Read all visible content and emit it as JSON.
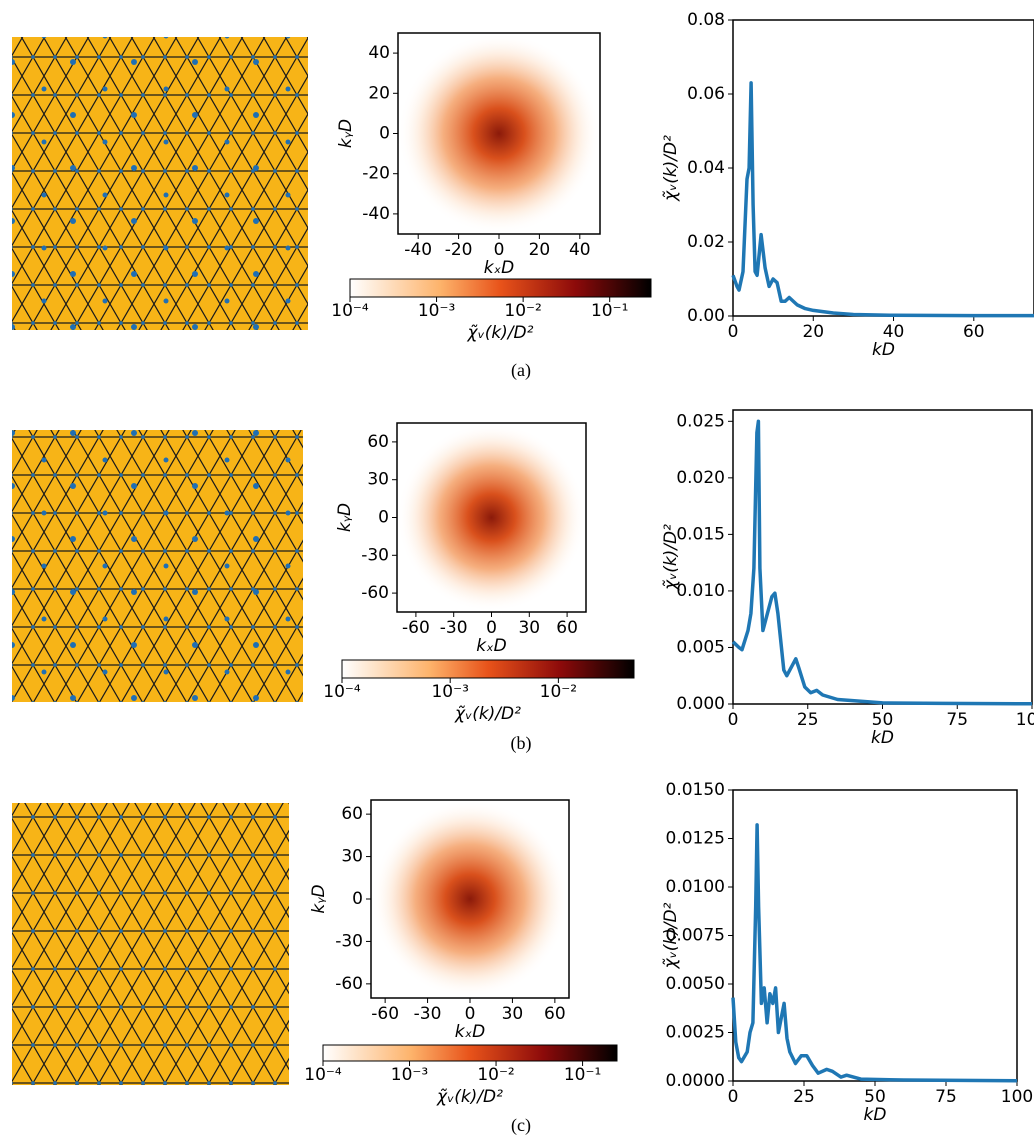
{
  "captions": [
    "(a)",
    "(b)",
    "(c)"
  ],
  "chart_data": [
    {
      "type": "heatmap",
      "xlabel": "kₓD",
      "ylabel": "kᵧD",
      "xlim": [
        -50,
        50
      ],
      "ylim": [
        -50,
        50
      ],
      "xticks": [
        -40,
        -20,
        0,
        20,
        40
      ],
      "yticks": [
        -40,
        -20,
        0,
        20,
        40
      ],
      "colorbar_label": "χ̃ᵥ(k)/D²",
      "clim": [
        0.0001,
        0.3
      ],
      "clog": true,
      "cticks": [
        {
          "value": 0.0001,
          "label": "10⁻⁴"
        },
        {
          "value": 0.001,
          "label": "10⁻³"
        },
        {
          "value": 0.01,
          "label": "10⁻²"
        },
        {
          "value": 0.1,
          "label": "10⁻¹"
        }
      ]
    },
    {
      "type": "line",
      "xlabel": "kD",
      "ylabel": "χ̃ᵥ(k)/D²",
      "color": "#1f77b4",
      "xlim": [
        0,
        75
      ],
      "ylim": [
        0,
        0.08
      ],
      "xticks": [
        0,
        20,
        40,
        60
      ],
      "yticks": [
        {
          "value": 0,
          "label": "0.00"
        },
        0.02,
        0.04,
        0.06,
        0.08
      ],
      "x": [
        0,
        1,
        1.5,
        2.5,
        3.5,
        4,
        4.5,
        5,
        5.5,
        6,
        7,
        8,
        9,
        10,
        11,
        12,
        13,
        14,
        16,
        18,
        20,
        25,
        30,
        40,
        60,
        75
      ],
      "values": [
        0.011,
        0.008,
        0.007,
        0.012,
        0.037,
        0.04,
        0.063,
        0.03,
        0.012,
        0.011,
        0.022,
        0.013,
        0.008,
        0.01,
        0.009,
        0.004,
        0.004,
        0.005,
        0.003,
        0.002,
        0.0015,
        0.0008,
        0.0004,
        0.0002,
        0.0001,
        0.0001
      ]
    },
    {
      "type": "heatmap",
      "xlabel": "kₓD",
      "ylabel": "kᵧD",
      "xlim": [
        -75,
        75
      ],
      "ylim": [
        -75,
        75
      ],
      "xticks": [
        -60,
        -30,
        0,
        30,
        60
      ],
      "yticks": [
        -60,
        -30,
        0,
        30,
        60
      ],
      "colorbar_label": "χ̃ᵥ(k)/D²",
      "clim": [
        0.0001,
        0.05
      ],
      "clog": true,
      "cticks": [
        {
          "value": 0.0001,
          "label": "10⁻⁴"
        },
        {
          "value": 0.001,
          "label": "10⁻³"
        },
        {
          "value": 0.01,
          "label": "10⁻²"
        }
      ]
    },
    {
      "type": "line",
      "xlabel": "kD",
      "ylabel": "χ̃ᵥ(k)/D²",
      "color": "#1f77b4",
      "xlim": [
        0,
        100
      ],
      "ylim": [
        0,
        0.026
      ],
      "xticks": [
        0,
        25,
        50,
        75,
        100
      ],
      "yticks": [
        {
          "value": 0,
          "label": "0.000"
        },
        0.005,
        {
          "value": 0.01,
          "label": "0.010"
        },
        0.015,
        {
          "value": 0.02,
          "label": "0.020"
        },
        0.025
      ],
      "x": [
        0,
        2,
        3,
        5,
        6,
        7,
        8,
        8.5,
        9,
        10,
        11,
        13,
        14,
        15,
        17,
        18,
        20,
        21,
        22,
        24,
        26,
        28,
        30,
        35,
        40,
        50,
        70,
        100
      ],
      "values": [
        0.0055,
        0.005,
        0.0048,
        0.0065,
        0.008,
        0.012,
        0.024,
        0.025,
        0.012,
        0.0065,
        0.0075,
        0.0095,
        0.0098,
        0.008,
        0.003,
        0.0025,
        0.0035,
        0.004,
        0.0032,
        0.0015,
        0.001,
        0.0012,
        0.0008,
        0.0004,
        0.0003,
        0.0001,
        5e-05,
        2e-05
      ]
    },
    {
      "type": "heatmap",
      "xlabel": "kₓD",
      "ylabel": "kᵧD",
      "xlim": [
        -70,
        70
      ],
      "ylim": [
        -70,
        70
      ],
      "xticks": [
        -60,
        -30,
        0,
        30,
        60
      ],
      "yticks": [
        -60,
        -30,
        0,
        30,
        60
      ],
      "colorbar_label": "χ̃ᵥ(k)/D²",
      "clim": [
        0.0001,
        0.25
      ],
      "clog": true,
      "cticks": [
        {
          "value": 0.0001,
          "label": "10⁻⁴"
        },
        {
          "value": 0.001,
          "label": "10⁻³"
        },
        {
          "value": 0.01,
          "label": "10⁻²"
        },
        {
          "value": 0.1,
          "label": "10⁻¹"
        }
      ]
    },
    {
      "type": "line",
      "xlabel": "kD",
      "ylabel": "χ̃ᵥ(k)/D²",
      "color": "#1f77b4",
      "xlim": [
        0,
        100
      ],
      "ylim": [
        0,
        0.015
      ],
      "xticks": [
        0,
        25,
        50,
        75,
        100
      ],
      "yticks": [
        {
          "value": 0,
          "label": "0.0000"
        },
        0.0025,
        {
          "value": 0.005,
          "label": "0.0050"
        },
        0.0075,
        {
          "value": 0.01,
          "label": "0.0100"
        },
        0.0125,
        {
          "value": 0.015,
          "label": "0.0150"
        }
      ],
      "x": [
        0,
        1,
        2,
        3,
        5,
        6,
        7,
        8,
        8.5,
        9,
        10,
        11,
        12,
        13,
        14,
        15,
        16,
        18,
        19,
        20,
        22,
        24,
        26,
        28,
        30,
        33,
        35,
        38,
        40,
        45,
        60,
        100
      ],
      "values": [
        0.0043,
        0.002,
        0.0012,
        0.001,
        0.0015,
        0.0025,
        0.003,
        0.009,
        0.0132,
        0.009,
        0.004,
        0.0048,
        0.003,
        0.0045,
        0.004,
        0.0048,
        0.0025,
        0.004,
        0.0022,
        0.0015,
        0.0009,
        0.0013,
        0.0013,
        0.0008,
        0.0004,
        0.0006,
        0.0005,
        0.0002,
        0.0003,
        0.0001,
        5e-05,
        1e-05
      ]
    }
  ]
}
